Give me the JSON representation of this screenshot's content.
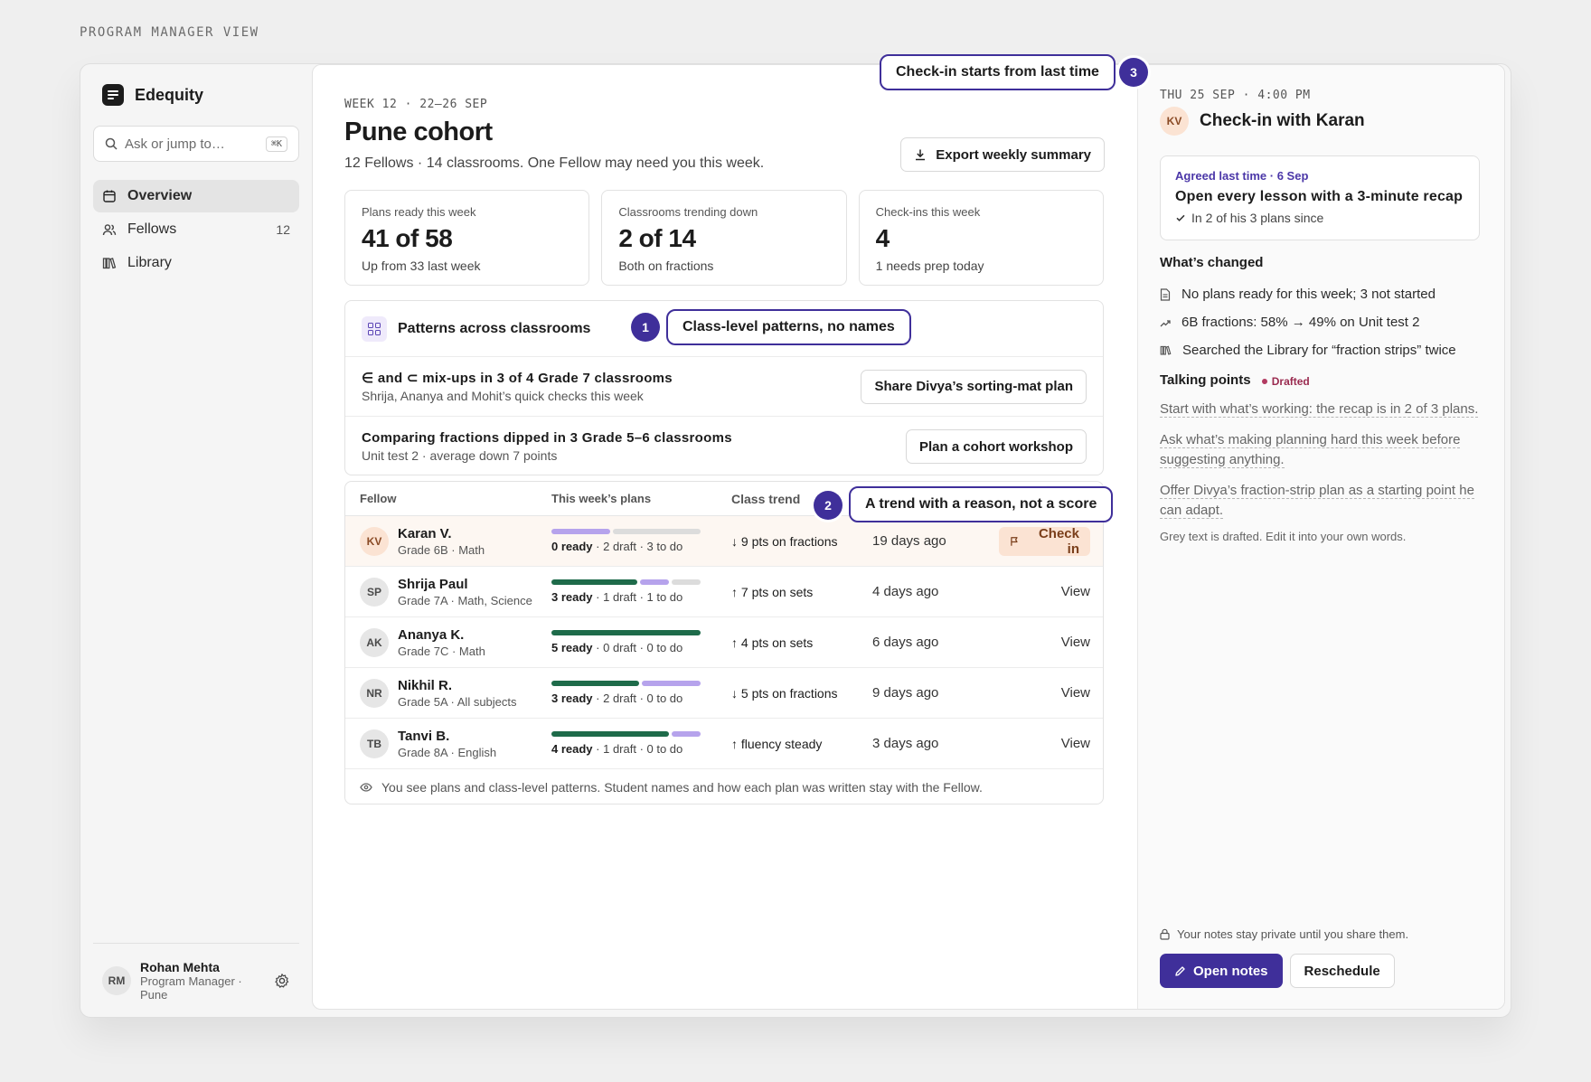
{
  "view_label": "PROGRAM MANAGER VIEW",
  "brand": {
    "name": "Edequity"
  },
  "search": {
    "placeholder": "Ask or jump to…",
    "shortcut": "⌘K"
  },
  "nav": {
    "items": [
      {
        "label": "Overview",
        "icon": "calendar-icon",
        "active": true
      },
      {
        "label": "Fellows",
        "icon": "users-icon",
        "count": "12"
      },
      {
        "label": "Library",
        "icon": "library-icon"
      }
    ]
  },
  "user": {
    "initials": "RM",
    "name": "Rohan Mehta",
    "role_line1": "Program Manager ·",
    "role_line2": "Pune"
  },
  "main": {
    "week": "WEEK 12 · 22–26 SEP",
    "title": "Pune cohort",
    "subtitle": "12 Fellows · 14 classrooms. One Fellow may need you this week.",
    "export_label": "Export weekly summary",
    "stats": [
      {
        "label": "Plans ready this week",
        "value": "41 of 58",
        "sub": "Up from 33 last week"
      },
      {
        "label": "Classrooms trending down",
        "value": "2 of 14",
        "sub": "Both on fractions"
      },
      {
        "label": "Check-ins this week",
        "value": "4",
        "sub": "1 needs prep today"
      }
    ],
    "patterns": {
      "title": "Patterns across classrooms",
      "items": [
        {
          "title": "∈ and ⊂ mix-ups in 3 of 4 Grade 7 classrooms",
          "sub": "Shrija, Ananya and Mohit’s quick checks this week",
          "action": "Share Divya’s sorting-mat plan"
        },
        {
          "title": "Comparing fractions dipped in 3 Grade 5–6 classrooms",
          "sub": "Unit test 2 · average down 7 points",
          "action": "Plan a cohort workshop"
        }
      ]
    },
    "table": {
      "headers": {
        "fellow": "Fellow",
        "plans": "This week’s plans",
        "trend": "Class trend"
      },
      "rows": [
        {
          "initials": "KV",
          "name": "Karan V.",
          "sub": "Grade 6B · Math",
          "ready": 0,
          "draft": 2,
          "todo": 3,
          "ready_text": "0 ready",
          "rest_text": " · 2 draft · 3 to do",
          "arrow": "↓",
          "trend": "9 pts on fractions",
          "last": "19 days ago",
          "action": "Check in"
        },
        {
          "initials": "SP",
          "name": "Shrija Paul",
          "sub": "Grade 7A · Math, Science",
          "ready": 3,
          "draft": 1,
          "todo": 1,
          "ready_text": "3 ready",
          "rest_text": " · 1 draft · 1 to do",
          "arrow": "↑",
          "trend": "7 pts on sets",
          "last": "4 days ago",
          "action": "View"
        },
        {
          "initials": "AK",
          "name": "Ananya K.",
          "sub": "Grade 7C · Math",
          "ready": 5,
          "draft": 0,
          "todo": 0,
          "ready_text": "5 ready",
          "rest_text": " · 0 draft · 0 to do",
          "arrow": "↑",
          "trend": "4 pts on sets",
          "last": "6 days ago",
          "action": "View"
        },
        {
          "initials": "NR",
          "name": "Nikhil R.",
          "sub": "Grade 5A · All subjects",
          "ready": 3,
          "draft": 2,
          "todo": 0,
          "ready_text": "3 ready",
          "rest_text": " · 2 draft · 0 to do",
          "arrow": "↓",
          "trend": "5 pts on fractions",
          "last": "9 days ago",
          "action": "View"
        },
        {
          "initials": "TB",
          "name": "Tanvi B.",
          "sub": "Grade 8A · English",
          "ready": 4,
          "draft": 1,
          "todo": 0,
          "ready_text": "4 ready",
          "rest_text": " · 1 draft · 0 to do",
          "arrow": "↑",
          "trend": "fluency steady",
          "last": "3 days ago",
          "action": "View"
        }
      ],
      "footer": "You see plans and class-level patterns. Student names and how each plan was written stay with the Fellow."
    }
  },
  "callouts": [
    {
      "number": "1",
      "text": "Class-level patterns, no names"
    },
    {
      "number": "2",
      "text": "A trend with a reason, not a score"
    },
    {
      "number": "3",
      "text": "Check-in starts from last time"
    }
  ],
  "panel": {
    "date": "THU 25 SEP · 4:00 PM",
    "initials": "KV",
    "title": "Check-in with Karan",
    "agreed": {
      "label": "Agreed last time · 6 Sep",
      "title": "Open every lesson with a 3-minute recap",
      "sub": "In 2 of his 3 plans since"
    },
    "changed_title": "What’s changed",
    "changes": [
      {
        "icon": "document-icon",
        "text": "No plans ready for this week; 3 not started"
      },
      {
        "icon": "trend-icon",
        "text": "6B fractions: 58% → 49% on Unit test 2"
      },
      {
        "icon": "library-icon",
        "text": "Searched the Library for “fraction strips” twice"
      }
    ],
    "talking_title": "Talking points",
    "drafted_label": "Drafted",
    "talking_points": [
      "Start with what’s working: the recap is in 2 of 3 plans.",
      "Ask what’s making planning hard this week before suggesting anything.",
      "Offer Divya’s fraction-strip plan as a starting point he can adapt."
    ],
    "talk_note": "Grey text is drafted. Edit it into your own words.",
    "private_note": "Your notes stay private until you share them.",
    "open_notes": "Open notes",
    "reschedule": "Reschedule"
  },
  "colors": {
    "accent": "#3f2f9a",
    "ready": "#1e6b4a",
    "draft": "#b6a3ec",
    "todo": "#dcdcdc",
    "warm": "#fbe3d3"
  }
}
